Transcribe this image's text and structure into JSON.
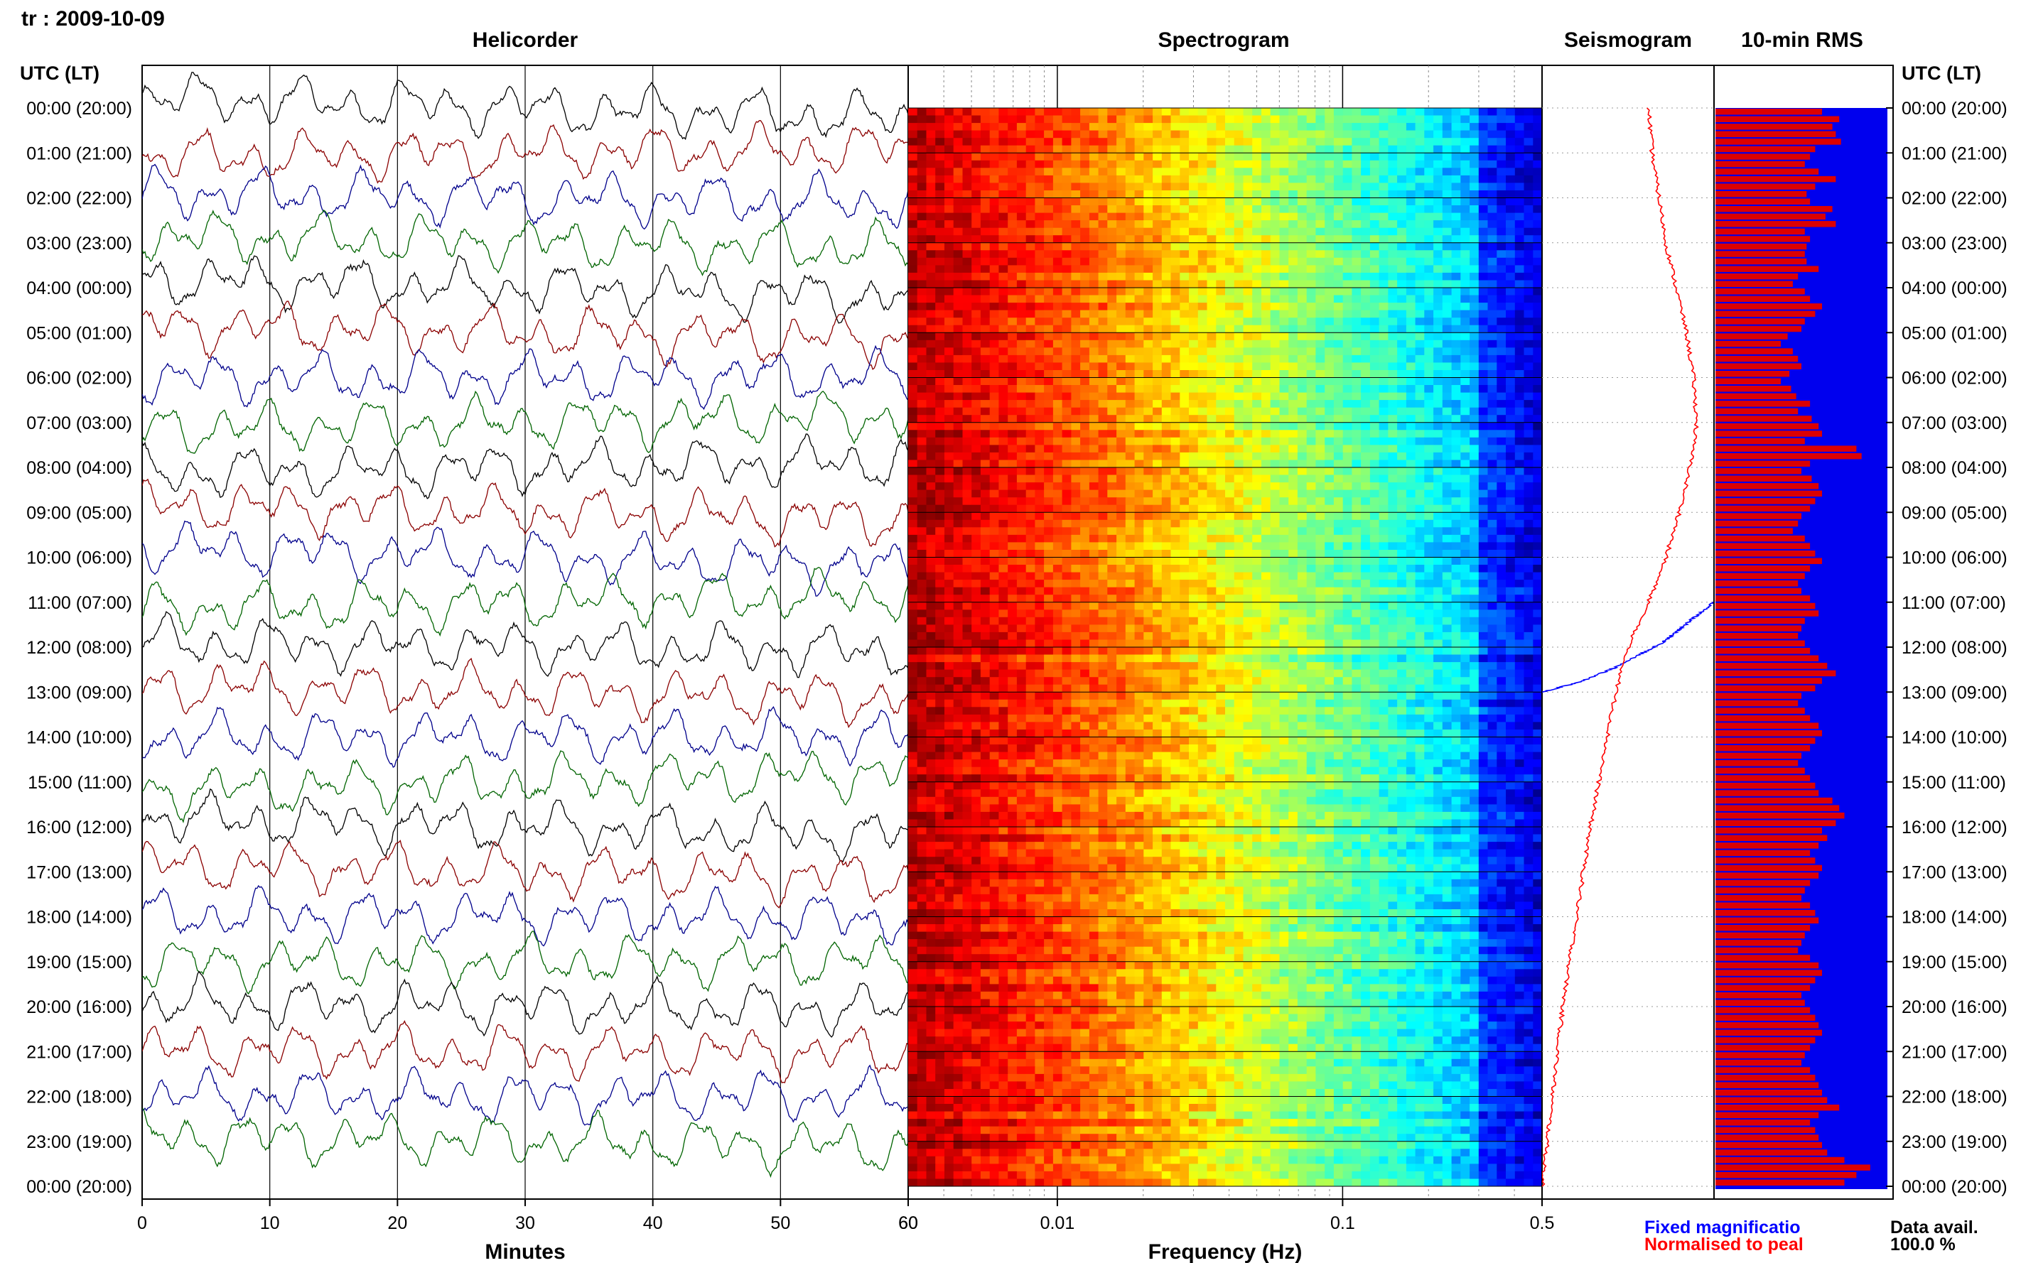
{
  "title": "tr : 2009-10-09",
  "panels": {
    "helicorder": "Helicorder",
    "spectrogram": "Spectrogram",
    "seismogram": "Seismogram",
    "rms": "10-min RMS"
  },
  "y_axis_header": "UTC (LT)",
  "row_labels": [
    "00:00 (20:00)",
    "01:00 (21:00)",
    "02:00 (22:00)",
    "03:00 (23:00)",
    "04:00 (00:00)",
    "05:00 (01:00)",
    "06:00 (02:00)",
    "07:00 (03:00)",
    "08:00 (04:00)",
    "09:00 (05:00)",
    "10:00 (06:00)",
    "11:00 (07:00)",
    "12:00 (08:00)",
    "13:00 (09:00)",
    "14:00 (10:00)",
    "15:00 (11:00)",
    "16:00 (12:00)",
    "17:00 (13:00)",
    "18:00 (14:00)",
    "19:00 (15:00)",
    "20:00 (16:00)",
    "21:00 (17:00)",
    "22:00 (18:00)",
    "23:00 (19:00)",
    "00:00 (20:00)"
  ],
  "x_labels": {
    "helicorder": "Minutes",
    "spectrogram": "Frequency (Hz)"
  },
  "legend": {
    "fixed": "Fixed magnificatio",
    "normalised": "Normalised to peal",
    "data_avail_label": "Data avail.",
    "data_avail_value": "100.0 %"
  },
  "colors": {
    "trace_colors": [
      "#000000",
      "#8b0000",
      "#00008b",
      "#006400"
    ],
    "seismo_fixed": "#0000ff",
    "seismo_normalised": "#ff0000",
    "rms_bar": "#dd0000",
    "rms_bg": "#0000ee"
  },
  "chart_data": [
    {
      "type": "line",
      "title": "Helicorder",
      "xlabel": "Minutes",
      "ylabel": "UTC (LT)",
      "x_ticks": [
        0,
        10,
        20,
        30,
        40,
        50,
        60
      ],
      "x_tick_labels": [
        "0",
        "10",
        "20",
        "30",
        "40",
        "50",
        "60"
      ],
      "xlim": [
        0,
        60
      ],
      "rows": 24,
      "note": "24 hourly traces, colors cycling black, dark red, dark blue, dark green"
    },
    {
      "type": "heatmap",
      "title": "Spectrogram",
      "xlabel": "Frequency (Hz)",
      "x_scale": "log",
      "xlim": [
        0.003,
        0.5
      ],
      "x_tick_labels": [
        "60",
        "0.01",
        "0.1",
        "0.5"
      ],
      "rows": 24
    },
    {
      "type": "line",
      "title": "Seismogram",
      "series": [
        {
          "name": "Fixed magnificatio",
          "y_hours": [
            11.0,
            11.3,
            11.6,
            11.9,
            12.2,
            12.5,
            12.8,
            13.0
          ],
          "x": [
            1.0,
            0.9,
            0.8,
            0.7,
            0.55,
            0.4,
            0.2,
            0.0
          ]
        },
        {
          "name": "Normalised to peal",
          "y_hours": [
            0,
            1,
            2,
            3,
            4,
            5,
            6,
            7,
            8,
            9,
            10,
            11,
            12,
            13,
            14,
            15,
            16,
            17,
            18,
            19,
            20,
            21,
            22,
            23,
            24
          ],
          "x": [
            0.62,
            0.64,
            0.68,
            0.72,
            0.78,
            0.84,
            0.88,
            0.9,
            0.86,
            0.8,
            0.72,
            0.62,
            0.5,
            0.43,
            0.38,
            0.33,
            0.28,
            0.24,
            0.2,
            0.16,
            0.12,
            0.09,
            0.06,
            0.03,
            0.0
          ]
        }
      ]
    },
    {
      "type": "bar",
      "title": "10-min RMS",
      "rows": 144,
      "values": [
        0.62,
        0.72,
        0.68,
        0.7,
        0.73,
        0.58,
        0.55,
        0.52,
        0.6,
        0.7,
        0.58,
        0.53,
        0.55,
        0.68,
        0.64,
        0.7,
        0.52,
        0.55,
        0.53,
        0.52,
        0.53,
        0.6,
        0.48,
        0.45,
        0.52,
        0.55,
        0.62,
        0.58,
        0.52,
        0.5,
        0.42,
        0.38,
        0.45,
        0.48,
        0.5,
        0.43,
        0.38,
        0.44,
        0.47,
        0.55,
        0.48,
        0.56,
        0.6,
        0.62,
        0.52,
        0.82,
        0.85,
        0.55,
        0.5,
        0.56,
        0.6,
        0.62,
        0.58,
        0.55,
        0.5,
        0.48,
        0.45,
        0.52,
        0.55,
        0.58,
        0.62,
        0.55,
        0.52,
        0.48,
        0.5,
        0.55,
        0.58,
        0.6,
        0.52,
        0.5,
        0.48,
        0.52,
        0.55,
        0.6,
        0.65,
        0.7,
        0.62,
        0.58,
        0.5,
        0.48,
        0.52,
        0.55,
        0.6,
        0.62,
        0.58,
        0.55,
        0.5,
        0.48,
        0.52,
        0.55,
        0.58,
        0.6,
        0.68,
        0.72,
        0.75,
        0.7,
        0.62,
        0.65,
        0.6,
        0.55,
        0.58,
        0.62,
        0.6,
        0.55,
        0.52,
        0.5,
        0.55,
        0.58,
        0.6,
        0.55,
        0.52,
        0.5,
        0.48,
        0.55,
        0.6,
        0.62,
        0.58,
        0.55,
        0.5,
        0.52,
        0.55,
        0.58,
        0.6,
        0.62,
        0.58,
        0.55,
        0.52,
        0.5,
        0.55,
        0.58,
        0.6,
        0.62,
        0.65,
        0.72,
        0.6,
        0.55,
        0.58,
        0.6,
        0.62,
        0.65,
        0.75,
        0.9,
        0.82,
        0.75
      ]
    }
  ]
}
